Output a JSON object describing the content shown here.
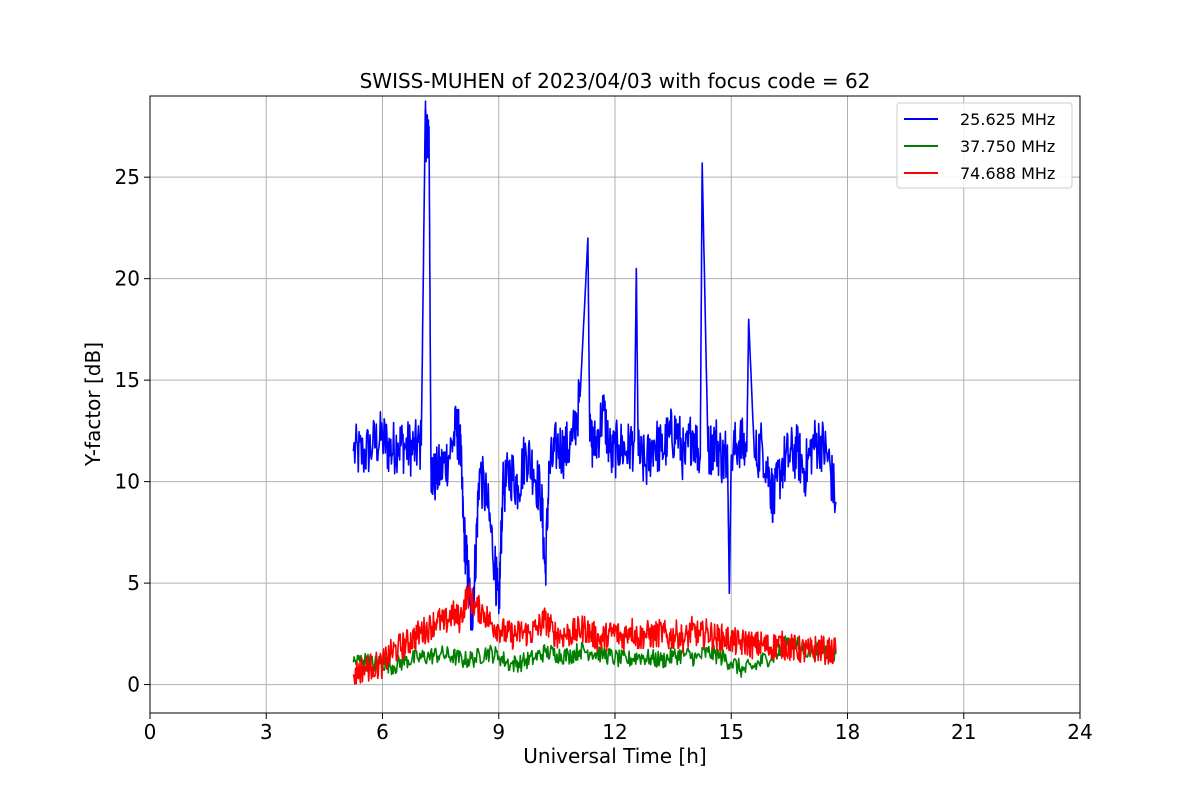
{
  "chart_data": {
    "type": "line",
    "title": "SWISS-MUHEN of 2023/04/03 with focus code = 62",
    "xlabel": "Universal Time [h]",
    "ylabel": "Y-factor [dB]",
    "xlim": [
      0,
      24
    ],
    "ylim": [
      -1.4,
      29
    ],
    "xticks": [
      0,
      3,
      6,
      9,
      12,
      15,
      18,
      21,
      24
    ],
    "yticks": [
      0,
      5,
      10,
      15,
      20,
      25
    ],
    "grid": true,
    "legend_position": "top-right",
    "series": [
      {
        "name": "25.625 MHz",
        "color": "#0000ff",
        "x": [
          5.25,
          5.5,
          5.75,
          6.0,
          6.2,
          6.4,
          6.6,
          6.8,
          7.0,
          7.1,
          7.15,
          7.2,
          7.25,
          7.3,
          7.5,
          7.7,
          7.9,
          8.0,
          8.1,
          8.2,
          8.3,
          8.4,
          8.5,
          8.7,
          8.9,
          9.0,
          9.1,
          9.3,
          9.5,
          9.7,
          9.9,
          10.1,
          10.2,
          10.3,
          10.5,
          10.7,
          10.9,
          11.1,
          11.3,
          11.35,
          11.5,
          11.7,
          11.9,
          12.1,
          12.3,
          12.5,
          12.55,
          12.6,
          12.8,
          13.0,
          13.2,
          13.4,
          13.6,
          13.8,
          14.0,
          14.2,
          14.25,
          14.4,
          14.6,
          14.8,
          14.9,
          14.95,
          15.0,
          15.2,
          15.4,
          15.45,
          15.6,
          15.8,
          16.0,
          16.1,
          16.3,
          16.5,
          16.7,
          16.9,
          17.1,
          17.3,
          17.5,
          17.7
        ],
        "values": [
          11.5,
          11.3,
          11.8,
          12.2,
          11.5,
          11.9,
          11.7,
          11.6,
          11.8,
          27.5,
          26.8,
          27.5,
          11.0,
          10.1,
          10.6,
          11.2,
          12.6,
          12.0,
          7.5,
          5.5,
          3.0,
          6.2,
          10.5,
          9.0,
          6.0,
          3.5,
          9.5,
          10.5,
          9.8,
          11.5,
          10.6,
          9.2,
          5.5,
          10.5,
          11.8,
          11.5,
          12.0,
          14.2,
          22.0,
          12.0,
          11.8,
          13.5,
          11.2,
          11.8,
          11.5,
          12.0,
          20.5,
          11.3,
          10.8,
          12.0,
          11.5,
          12.2,
          12.5,
          11.0,
          12.5,
          11.2,
          25.7,
          11.5,
          12.0,
          11.0,
          11.8,
          4.5,
          11.3,
          12.0,
          11.5,
          18.0,
          11.2,
          11.8,
          10.0,
          9.0,
          10.8,
          11.3,
          11.5,
          10.5,
          11.8,
          12.0,
          11.2,
          9.0
        ]
      },
      {
        "name": "37.750 MHz",
        "color": "#008000",
        "x": [
          5.25,
          5.5,
          5.75,
          6.0,
          6.3,
          6.6,
          6.9,
          7.2,
          7.5,
          7.8,
          8.1,
          8.4,
          8.7,
          9.0,
          9.3,
          9.6,
          9.9,
          10.2,
          10.5,
          10.8,
          11.1,
          11.4,
          11.7,
          12.0,
          12.3,
          12.6,
          12.9,
          13.2,
          13.5,
          13.8,
          14.1,
          14.4,
          14.7,
          15.0,
          15.3,
          15.6,
          15.9,
          16.2,
          16.5,
          16.8,
          17.1,
          17.4,
          17.7
        ],
        "values": [
          1.1,
          1.2,
          1.0,
          1.1,
          0.9,
          1.2,
          1.3,
          1.4,
          1.5,
          1.4,
          1.2,
          1.3,
          1.6,
          1.4,
          1.0,
          1.1,
          1.3,
          1.6,
          1.5,
          1.4,
          1.7,
          1.6,
          1.5,
          1.3,
          1.2,
          1.4,
          1.3,
          1.2,
          1.4,
          1.5,
          1.3,
          1.6,
          1.4,
          1.1,
          0.7,
          0.9,
          1.3,
          1.5,
          2.2,
          1.8,
          1.6,
          1.7,
          1.5
        ]
      },
      {
        "name": "74.688 MHz",
        "color": "#ff0000",
        "x": [
          5.25,
          5.5,
          5.75,
          6.0,
          6.2,
          6.4,
          6.6,
          6.8,
          7.0,
          7.2,
          7.4,
          7.6,
          7.8,
          8.0,
          8.2,
          8.4,
          8.6,
          8.8,
          9.0,
          9.2,
          9.4,
          9.6,
          9.8,
          10.0,
          10.2,
          10.4,
          10.6,
          10.8,
          11.0,
          11.2,
          11.4,
          11.6,
          11.8,
          12.0,
          12.2,
          12.4,
          12.6,
          12.8,
          13.0,
          13.2,
          13.4,
          13.6,
          13.8,
          14.0,
          14.2,
          14.4,
          14.6,
          14.8,
          15.0,
          15.2,
          15.4,
          15.6,
          15.8,
          16.0,
          16.2,
          16.4,
          16.6,
          16.8,
          17.0,
          17.2,
          17.4,
          17.7
        ],
        "values": [
          0.5,
          0.8,
          0.9,
          1.0,
          1.5,
          1.8,
          2.0,
          2.3,
          2.6,
          2.8,
          3.2,
          3.0,
          3.5,
          3.2,
          4.5,
          3.8,
          3.6,
          3.0,
          2.8,
          2.5,
          2.4,
          2.6,
          2.5,
          2.8,
          3.2,
          2.6,
          2.4,
          2.5,
          2.6,
          2.8,
          2.5,
          2.2,
          2.4,
          2.6,
          2.3,
          2.8,
          2.3,
          2.5,
          2.4,
          2.6,
          2.3,
          2.5,
          2.2,
          2.7,
          2.4,
          2.6,
          2.3,
          2.3,
          2.2,
          2.0,
          2.1,
          1.9,
          2.0,
          1.8,
          2.0,
          1.9,
          1.8,
          1.7,
          1.6,
          1.8,
          1.7,
          1.6
        ]
      }
    ]
  }
}
